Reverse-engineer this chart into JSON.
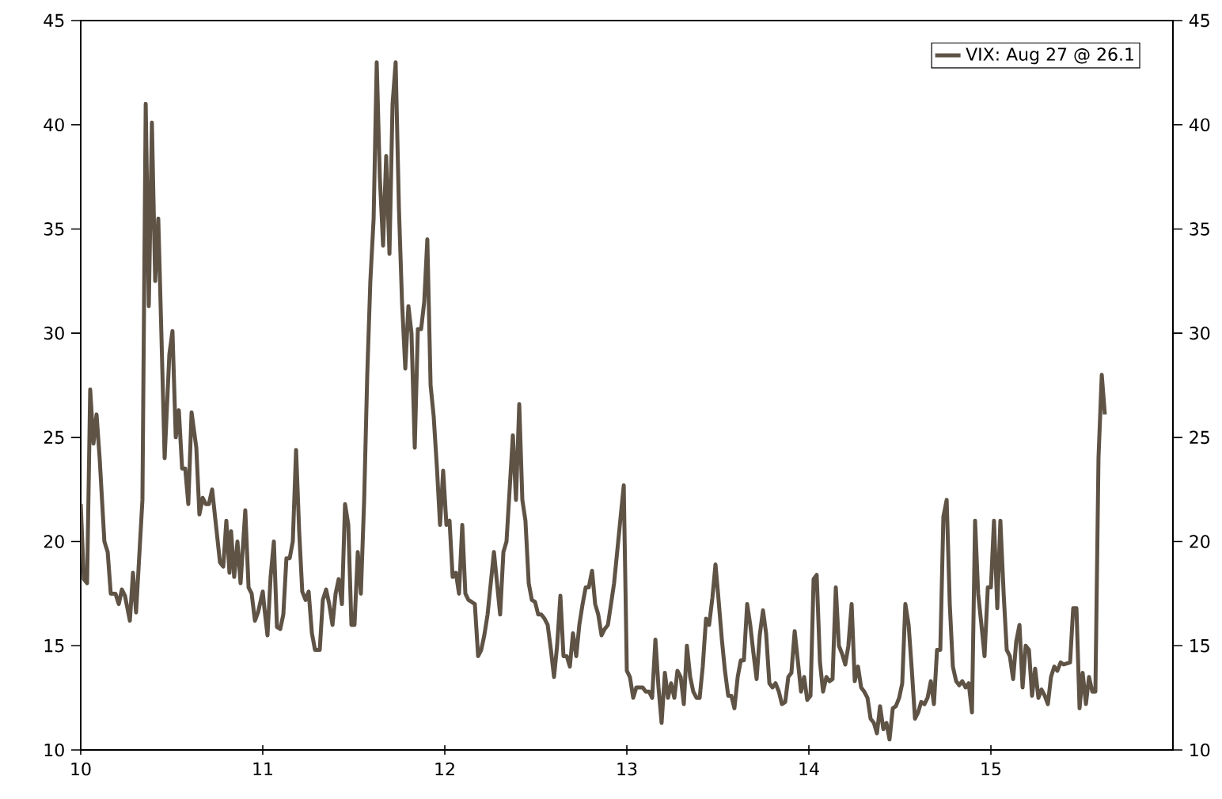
{
  "chart_data": {
    "type": "line",
    "x": [
      10.0,
      10.017,
      10.035,
      10.052,
      10.07,
      10.087,
      10.104,
      10.13,
      10.148,
      10.165,
      10.191,
      10.209,
      10.226,
      10.243,
      10.27,
      10.287,
      10.304,
      10.339,
      10.357,
      10.374,
      10.391,
      10.409,
      10.426,
      10.443,
      10.461,
      10.487,
      10.504,
      10.522,
      10.539,
      10.557,
      10.574,
      10.591,
      10.609,
      10.635,
      10.652,
      10.67,
      10.687,
      10.704,
      10.722,
      10.739,
      10.765,
      10.783,
      10.8,
      10.817,
      10.826,
      10.843,
      10.861,
      10.878,
      10.904,
      10.922,
      10.939,
      10.957,
      10.974,
      11.0,
      11.009,
      11.026,
      11.043,
      11.061,
      11.078,
      11.096,
      11.113,
      11.13,
      11.148,
      11.165,
      11.183,
      11.2,
      11.217,
      11.235,
      11.252,
      11.27,
      11.287,
      11.313,
      11.33,
      11.348,
      11.365,
      11.383,
      11.4,
      11.417,
      11.435,
      11.452,
      11.47,
      11.487,
      11.504,
      11.522,
      11.539,
      11.557,
      11.574,
      11.591,
      11.609,
      11.626,
      11.643,
      11.661,
      11.678,
      11.696,
      11.713,
      11.73,
      11.748,
      11.765,
      11.783,
      11.8,
      11.817,
      11.835,
      11.852,
      11.87,
      11.887,
      11.904,
      11.922,
      11.939,
      11.957,
      11.974,
      11.991,
      12.009,
      12.026,
      12.043,
      12.061,
      12.078,
      12.096,
      12.113,
      12.13,
      12.148,
      12.165,
      12.183,
      12.2,
      12.217,
      12.235,
      12.27,
      12.287,
      12.304,
      12.322,
      12.339,
      12.374,
      12.391,
      12.409,
      12.426,
      12.443,
      12.461,
      12.478,
      12.496,
      12.513,
      12.53,
      12.548,
      12.565,
      12.583,
      12.6,
      12.617,
      12.635,
      12.652,
      12.67,
      12.687,
      12.704,
      12.722,
      12.739,
      12.757,
      12.774,
      12.791,
      12.809,
      12.826,
      12.843,
      12.861,
      12.878,
      12.896,
      12.913,
      12.93,
      12.983,
      13.0,
      13.017,
      13.035,
      13.052,
      13.07,
      13.087,
      13.104,
      13.122,
      13.139,
      13.157,
      13.174,
      13.191,
      13.209,
      13.226,
      13.243,
      13.261,
      13.278,
      13.296,
      13.313,
      13.33,
      13.348,
      13.365,
      13.383,
      13.4,
      13.417,
      13.435,
      13.452,
      13.47,
      13.487,
      13.504,
      13.522,
      13.539,
      13.557,
      13.574,
      13.591,
      13.609,
      13.626,
      13.643,
      13.661,
      13.678,
      13.696,
      13.713,
      13.73,
      13.748,
      13.765,
      13.783,
      13.8,
      13.817,
      13.835,
      13.852,
      13.87,
      13.887,
      13.904,
      13.922,
      13.939,
      13.957,
      13.974,
      13.991,
      14.009,
      14.026,
      14.043,
      14.061,
      14.078,
      14.096,
      14.113,
      14.13,
      14.148,
      14.165,
      14.183,
      14.2,
      14.217,
      14.235,
      14.252,
      14.27,
      14.287,
      14.304,
      14.322,
      14.339,
      14.357,
      14.374,
      14.391,
      14.409,
      14.426,
      14.443,
      14.461,
      14.478,
      14.496,
      14.513,
      14.53,
      14.548,
      14.565,
      14.583,
      14.6,
      14.617,
      14.635,
      14.652,
      14.67,
      14.687,
      14.704,
      14.722,
      14.739,
      14.757,
      14.774,
      14.791,
      14.809,
      14.826,
      14.843,
      14.861,
      14.878,
      14.896,
      14.913,
      14.93,
      14.948,
      14.965,
      14.983,
      15.0,
      15.017,
      15.035,
      15.052,
      15.07,
      15.087,
      15.104,
      15.122,
      15.139,
      15.157,
      15.174,
      15.191,
      15.209,
      15.226,
      15.243,
      15.261,
      15.278,
      15.296,
      15.313,
      15.33,
      15.348,
      15.365,
      15.383,
      15.4,
      15.435,
      15.452,
      15.47,
      15.487,
      15.504,
      15.522,
      15.539,
      15.557,
      15.574,
      15.591,
      15.609,
      15.626
    ],
    "series": [
      {
        "name": "VIX: Aug 27 @ 26.1",
        "color": "#5f5346",
        "values": [
          21.8,
          18.2,
          18,
          27.3,
          24.7,
          26.1,
          24,
          20,
          19.5,
          17.5,
          17.5,
          17,
          17.7,
          17.4,
          16.2,
          18.5,
          16.6,
          22,
          41,
          31.3,
          40.1,
          32.5,
          35.5,
          30,
          24,
          29,
          30.1,
          25,
          26.3,
          23.5,
          23.5,
          21.8,
          26.2,
          24.5,
          21.3,
          22.1,
          21.8,
          21.8,
          22.5,
          21.1,
          19,
          18.8,
          21,
          18.5,
          20.5,
          18.3,
          20,
          18,
          21.5,
          17.8,
          17.5,
          16.2,
          16.6,
          17.6,
          16.8,
          15.5,
          18.3,
          20,
          15.9,
          15.8,
          16.5,
          19.2,
          19.2,
          20,
          24.4,
          20.5,
          17.6,
          17.2,
          17.6,
          15.6,
          14.8,
          14.8,
          17.2,
          17.7,
          17,
          16,
          17.5,
          18.2,
          17,
          21.8,
          20.8,
          16,
          16,
          19.5,
          17.5,
          22,
          28,
          32.5,
          35.5,
          43,
          37.5,
          34.2,
          38.5,
          33.8,
          41,
          43,
          36,
          31.5,
          28.3,
          31.3,
          30,
          24.5,
          30.2,
          30.2,
          31.5,
          34.5,
          27.5,
          26,
          23.5,
          20.8,
          23.4,
          20.8,
          21,
          18.3,
          18.5,
          17.5,
          20.8,
          17.5,
          17.2,
          17.1,
          17,
          14.5,
          14.8,
          15.5,
          16.5,
          19.5,
          18,
          16.5,
          19.5,
          20,
          25.1,
          22,
          26.6,
          22,
          21,
          18,
          17.2,
          17.1,
          16.5,
          16.5,
          16.3,
          16,
          14.8,
          13.5,
          15,
          17.4,
          14.5,
          14.5,
          14,
          15.6,
          14.5,
          16,
          17,
          17.8,
          17.8,
          18.6,
          17,
          16.5,
          15.5,
          15.8,
          16,
          17,
          18,
          22.7,
          13.8,
          13.5,
          12.5,
          13,
          13,
          13,
          12.8,
          12.8,
          12.5,
          15.3,
          13,
          11.3,
          13.7,
          12.5,
          13.2,
          12.5,
          13.8,
          13.5,
          12.2,
          15,
          13.5,
          12.8,
          12.5,
          12.5,
          14,
          16.3,
          16,
          17.3,
          18.9,
          17.2,
          15.3,
          13.8,
          12.6,
          12.6,
          12,
          13.5,
          14.3,
          14.3,
          17,
          16,
          14.6,
          13.4,
          15.5,
          16.7,
          15.6,
          13.2,
          13,
          13.2,
          12.8,
          12.2,
          12.3,
          13.5,
          13.7,
          15.7,
          14.3,
          12.8,
          13.5,
          12.4,
          12.6,
          18.2,
          18.4,
          14.2,
          12.8,
          13.5,
          13.3,
          13.4,
          17.8,
          15,
          14.6,
          14.1,
          15,
          17,
          13.3,
          14,
          13,
          12.8,
          12.5,
          11.5,
          11.3,
          10.8,
          12.1,
          11,
          11.3,
          10.5,
          12,
          12.1,
          12.5,
          13.2,
          17,
          16,
          13.9,
          11.5,
          11.8,
          12.3,
          12.2,
          12.5,
          13.3,
          12.2,
          14.8,
          14.8,
          21.2,
          22,
          17,
          14,
          13.3,
          13.1,
          13.3,
          13,
          13.2,
          11.8,
          21,
          17.5,
          16,
          14.5,
          17.8,
          17.8,
          21,
          16.8,
          21,
          17.5,
          14.8,
          14.5,
          13.4,
          15.2,
          16,
          13,
          15,
          14.8,
          12.6,
          13.9,
          12.5,
          12.9,
          12.6,
          12.2,
          13.5,
          14,
          13.8,
          14.2,
          14.1,
          14.2,
          16.8,
          16.8,
          12,
          13.7,
          12.2,
          13.5,
          12.8,
          12.8,
          24,
          28,
          26.1
        ]
      }
    ],
    "xlim": [
      10,
      16
    ],
    "xticks": [
      10,
      11,
      12,
      13,
      14,
      15
    ],
    "ylim": [
      10,
      45
    ],
    "yticks": [
      10,
      15,
      20,
      25,
      30,
      35,
      40,
      45
    ],
    "y2lim": [
      10,
      45
    ],
    "y2ticks": [
      10,
      15,
      20,
      25,
      30,
      35,
      40,
      45
    ],
    "grid": false,
    "legend": "top right",
    "marker": "none",
    "line_style": "solid"
  }
}
